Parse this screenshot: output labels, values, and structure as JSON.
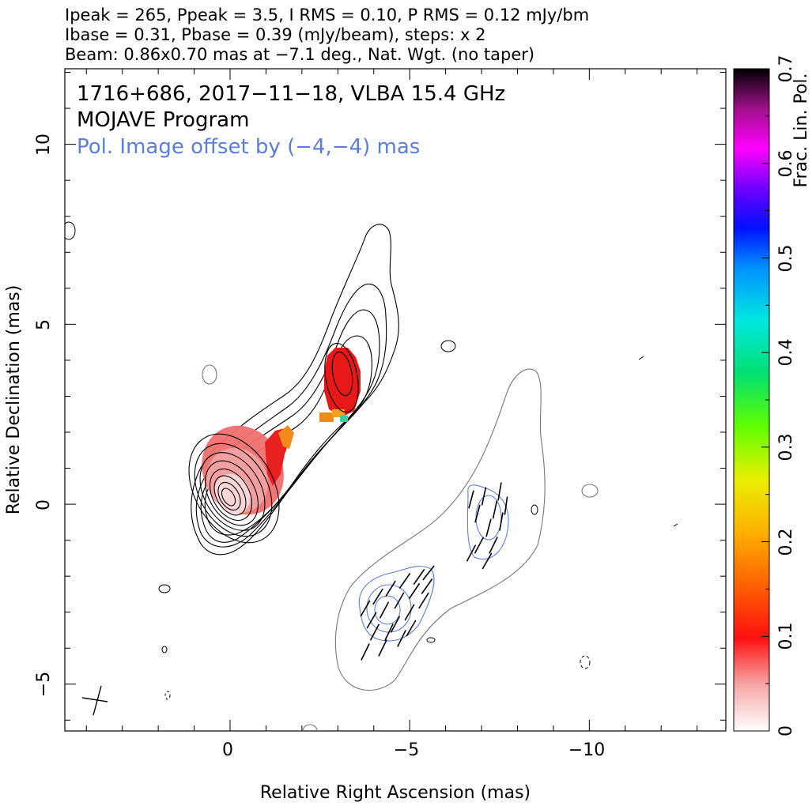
{
  "header": {
    "line1": "Ipeak = 265, Ppeak = 3.5, I RMS = 0.10, P RMS = 0.12 mJy/bm",
    "line2": "Ibase = 0.31, Pbase = 0.39 (mJy/beam), steps: x 2",
    "line3": "Beam: 0.86x0.70 mas at −7.1 deg., Nat. Wgt. (no taper)"
  },
  "annotations": {
    "source_line": "1716+686, 2017−11−18, VLBA 15.4 GHz",
    "program_line": "MOJAVE Program",
    "offset_note": "Pol. Image offset by (−4,−4) mas",
    "offset_color": "#5b7fd6"
  },
  "colors": {
    "total_intensity_contour": "#000000",
    "outer_contour": "#777777",
    "pol_contour": "#5b7fd6",
    "evpa_vector": "#000000"
  },
  "chart_data": {
    "type": "contour",
    "xlabel": "Relative Right Ascension (mas)",
    "ylabel": "Relative Declination (mas)",
    "xlim": [
      4.6,
      -13.8
    ],
    "ylim": [
      -6.3,
      12.1
    ],
    "x_ticks": [
      {
        "value": 0,
        "label": "0"
      },
      {
        "value": -5,
        "label": "−5"
      },
      {
        "value": -10,
        "label": "−10"
      }
    ],
    "y_ticks": [
      {
        "value": -5,
        "label": "−5"
      },
      {
        "value": 0,
        "label": "0"
      },
      {
        "value": 5,
        "label": "5"
      },
      {
        "value": 10,
        "label": "10"
      }
    ],
    "minor_tick_step": 1,
    "colorbar": {
      "label": "Frac. Lin. Pol.",
      "range": [
        0,
        0.7
      ],
      "ticks": [
        "0",
        "0.1",
        "0.2",
        "0.3",
        "0.4",
        "0.5",
        "0.6",
        "0.7"
      ]
    },
    "intensity_components": [
      {
        "x": 0.0,
        "y": 0.3,
        "rx": 1.0,
        "ry": 2.0,
        "angle": -28,
        "levels": 9
      },
      {
        "x": -3.2,
        "y": 3.7,
        "rx": 0.45,
        "ry": 1.0,
        "angle": -15,
        "levels": 3
      }
    ],
    "polarization_components": [
      {
        "x": -4.4,
        "y": -3.0,
        "rx": 0.9,
        "ry": 1.1,
        "levels": 3
      },
      {
        "x": -7.3,
        "y": -0.5,
        "rx": 0.5,
        "ry": 0.9,
        "levels": 2
      }
    ],
    "fractional_pol_regions": [
      {
        "x": -0.5,
        "y": 0.9,
        "rx": 0.95,
        "ry": 1.1,
        "angle": -28,
        "value": 0.05
      },
      {
        "x": -3.3,
        "y": 3.4,
        "rx": 0.5,
        "ry": 0.95,
        "angle": -5,
        "value": 0.1
      }
    ],
    "peak_intensity_mJy_per_beam": 265,
    "peak_polarization_mJy_per_beam": 3.5,
    "contour_steps": "x 2"
  }
}
